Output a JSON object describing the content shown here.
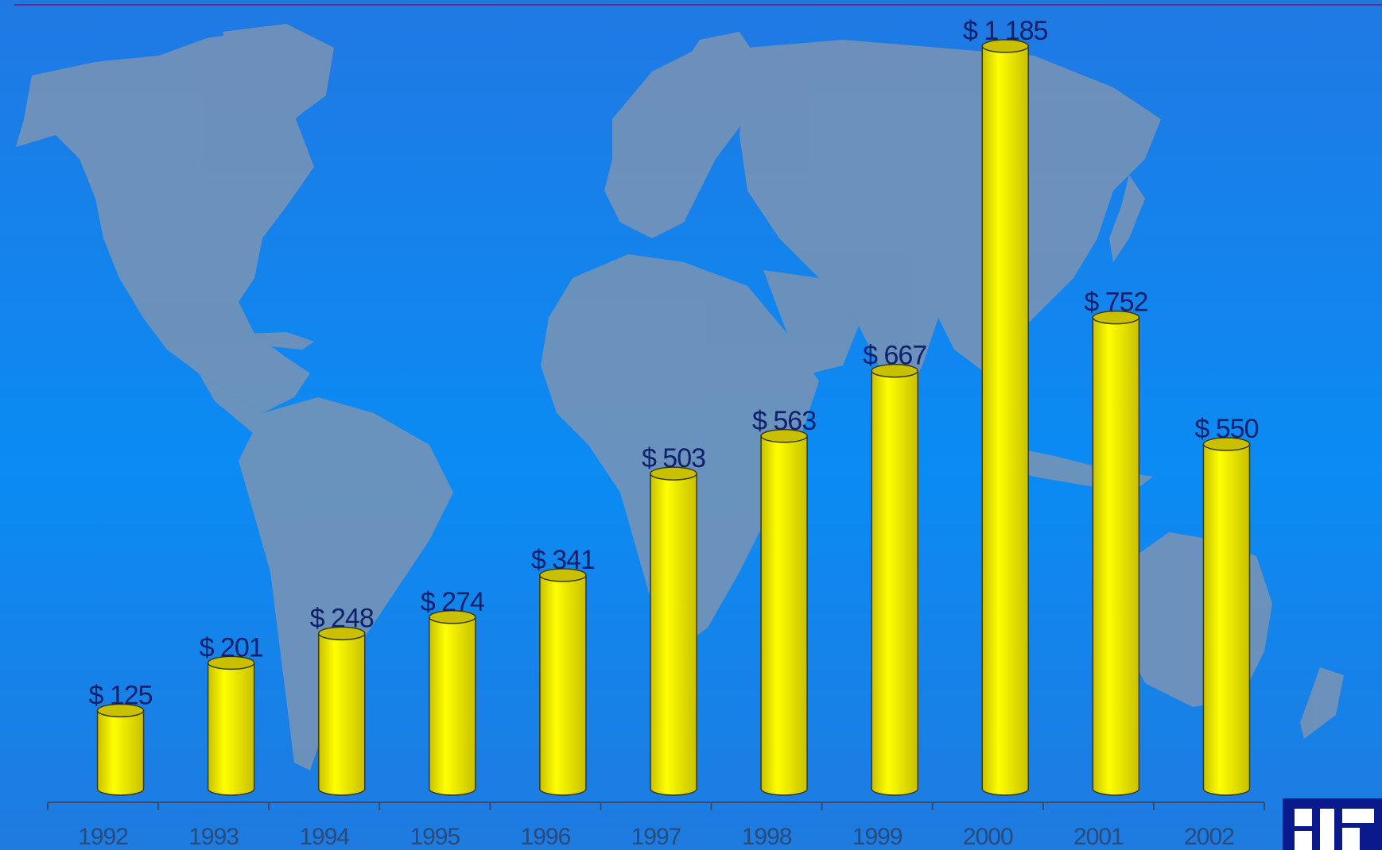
{
  "colors": {
    "background_top": "#2079e3",
    "background_mid": "#0b8bf4",
    "background_bottom": "#1f7be0",
    "top_rule": "#6b2a8a",
    "map_land": "#7a94b4",
    "bar_fill": "#ffff00",
    "bar_shade": "#c8c000",
    "bar_outline": "#3a3a10",
    "label_color": "#10206a",
    "tick_label_color": "#2a4a7a",
    "axis_color": "#3a4a6a",
    "logo_color": "#0a1a8c"
  },
  "chart_data": {
    "type": "bar",
    "title": "",
    "xlabel": "",
    "ylabel": "",
    "categories": [
      "1992",
      "1993",
      "1994",
      "1995",
      "1996",
      "1997",
      "1998",
      "1999",
      "2000",
      "2001",
      "2002"
    ],
    "values": [
      125,
      201,
      248,
      274,
      341,
      503,
      563,
      667,
      1185,
      752,
      550
    ],
    "data_labels": [
      "$ 125",
      "$ 201",
      "$ 248",
      "$ 274",
      "$ 341",
      "$ 503",
      "$ 563",
      "$ 667",
      "$ 1 185",
      "$ 752",
      "$ 550"
    ],
    "ylim": [
      0,
      1185
    ],
    "grid": false,
    "legend": "none",
    "bar_style": "3d-cylinder"
  }
}
